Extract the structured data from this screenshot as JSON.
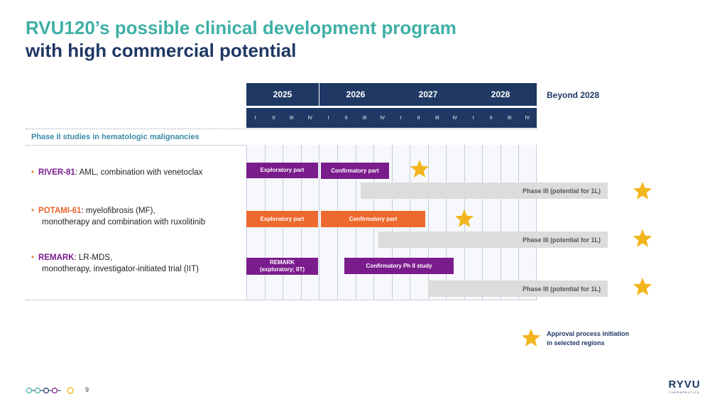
{
  "title": {
    "line1": "RVU120’s possible clinical development program",
    "line2": "with high commercial potential"
  },
  "timeline": {
    "years": [
      "2025",
      "2026",
      "2027",
      "2028"
    ],
    "quarters": [
      "I",
      "II",
      "III",
      "IV"
    ],
    "beyond": "Beyond 2028"
  },
  "section_label": "Phase II studies in hematologic malignancies",
  "rows": [
    {
      "name": "RIVER-81",
      "desc1": ": AML, combination with venetoclax",
      "desc2": ""
    },
    {
      "name": "POTAMI-61",
      "desc1": ": myelofibrosis (MF),",
      "desc2": "monotherapy and combination with ruxolitinib"
    },
    {
      "name": "REMARK",
      "desc1": ": LR-MDS,",
      "desc2": "monotherapy, investigator-initiated trial (IIT)"
    }
  ],
  "bars": {
    "river_exploratory": "Exploratory part",
    "river_confirmatory": "Confirmatory part",
    "river_phase3": "Phase III (potential for 1L)",
    "potami_exploratory": "Exploratory part",
    "potami_confirmatory": "Confirmatory part",
    "potami_phase3": "Phase III (potential for 1L)",
    "remark_line1": "REMARK",
    "remark_line2": "(exploratory; IIT)",
    "remark_confirmatory": "Confirmatory Ph II study",
    "remark_phase3": "Phase III (potential for 1L)"
  },
  "legend": {
    "line1": "Approval process initiation",
    "line2": "in selected regions"
  },
  "page_number": "9",
  "logo": {
    "word": "RYVU",
    "sub": "THERAPEUTICS"
  },
  "colors": {
    "teal": "#3fb0a6",
    "navy": "#1f3864",
    "purple": "#7a1c8c",
    "orange": "#ed6a2e",
    "star": "#f2b51d",
    "grey": "#dcdcdc"
  }
}
